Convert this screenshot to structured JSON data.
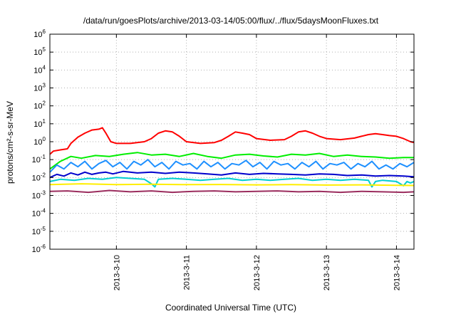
{
  "chart_data": {
    "type": "line",
    "title": "/data/run/goesPlots/archive/2013-03-14/05:00/flux/../flux/5daysMoonFluxes.txt",
    "xlabel": "Coordinated Universal Time (UTC)",
    "ylabel": "protons/cm²-s-sr-MeV",
    "yscale": "log",
    "ylim": [
      1e-06,
      1000000.0
    ],
    "xlim_days": [
      9.05,
      14.25
    ],
    "y_ticks": [
      {
        "base": "10",
        "exp": "-6"
      },
      {
        "base": "10",
        "exp": "-5"
      },
      {
        "base": "10",
        "exp": "-4"
      },
      {
        "base": "10",
        "exp": "-3"
      },
      {
        "base": "10",
        "exp": "-2"
      },
      {
        "base": "10",
        "exp": "-1"
      },
      {
        "base": "10",
        "exp": "0"
      },
      {
        "base": "10",
        "exp": "1"
      },
      {
        "base": "10",
        "exp": "2"
      },
      {
        "base": "10",
        "exp": "3"
      },
      {
        "base": "10",
        "exp": "4"
      },
      {
        "base": "10",
        "exp": "5"
      },
      {
        "base": "10",
        "exp": "6"
      }
    ],
    "x_ticks": [
      "2013-3-10",
      "2013-3-11",
      "2013-3-12",
      "2013-3-13",
      "2013-3-14"
    ],
    "grid": true,
    "series": [
      {
        "color": "#ff0000",
        "x": [
          9.05,
          9.1,
          9.2,
          9.3,
          9.35,
          9.45,
          9.55,
          9.65,
          9.75,
          9.8,
          9.85,
          9.92,
          10.0,
          10.2,
          10.4,
          10.5,
          10.6,
          10.7,
          10.8,
          10.9,
          11.0,
          11.2,
          11.4,
          11.5,
          11.6,
          11.7,
          11.8,
          11.9,
          12.0,
          12.2,
          12.4,
          12.5,
          12.6,
          12.7,
          12.8,
          12.9,
          13.0,
          13.2,
          13.4,
          13.5,
          13.6,
          13.7,
          13.8,
          13.9,
          14.0,
          14.1,
          14.2,
          14.25
        ],
        "y": [
          0.2,
          0.3,
          0.35,
          0.4,
          0.8,
          1.8,
          3.0,
          4.5,
          5.0,
          6.0,
          3.0,
          1.0,
          0.8,
          0.8,
          1.0,
          1.5,
          3.0,
          4.0,
          3.5,
          2.0,
          1.0,
          0.8,
          0.9,
          1.2,
          2.0,
          3.5,
          3.0,
          2.5,
          1.5,
          1.2,
          1.3,
          2.0,
          3.5,
          4.0,
          3.0,
          2.0,
          1.5,
          1.3,
          1.6,
          2.0,
          2.5,
          2.8,
          2.5,
          2.2,
          2.0,
          1.5,
          1.0,
          0.9
        ]
      },
      {
        "color": "#00ee00",
        "x": [
          9.05,
          9.2,
          9.35,
          9.5,
          9.7,
          9.9,
          10.1,
          10.3,
          10.5,
          10.7,
          10.9,
          11.1,
          11.3,
          11.5,
          11.7,
          11.9,
          12.1,
          12.3,
          12.5,
          12.7,
          12.9,
          13.1,
          13.3,
          13.5,
          13.7,
          13.9,
          14.1,
          14.25
        ],
        "y": [
          0.03,
          0.08,
          0.15,
          0.12,
          0.17,
          0.15,
          0.2,
          0.25,
          0.18,
          0.2,
          0.15,
          0.22,
          0.15,
          0.12,
          0.18,
          0.2,
          0.16,
          0.14,
          0.2,
          0.18,
          0.22,
          0.15,
          0.18,
          0.15,
          0.14,
          0.12,
          0.13,
          0.13
        ]
      },
      {
        "color": "#1e90ff",
        "x": [
          9.05,
          9.15,
          9.25,
          9.35,
          9.45,
          9.55,
          9.65,
          9.75,
          9.85,
          9.95,
          10.05,
          10.15,
          10.25,
          10.35,
          10.45,
          10.55,
          10.65,
          10.75,
          10.85,
          10.95,
          11.05,
          11.15,
          11.25,
          11.35,
          11.45,
          11.55,
          11.65,
          11.75,
          11.85,
          11.95,
          12.05,
          12.15,
          12.25,
          12.35,
          12.45,
          12.55,
          12.65,
          12.75,
          12.85,
          12.95,
          13.05,
          13.15,
          13.25,
          13.35,
          13.45,
          13.55,
          13.65,
          13.75,
          13.85,
          13.95,
          14.05,
          14.15,
          14.25
        ],
        "y": [
          0.02,
          0.05,
          0.03,
          0.07,
          0.04,
          0.08,
          0.03,
          0.06,
          0.09,
          0.04,
          0.07,
          0.03,
          0.08,
          0.05,
          0.1,
          0.04,
          0.07,
          0.03,
          0.08,
          0.05,
          0.06,
          0.03,
          0.08,
          0.04,
          0.07,
          0.03,
          0.06,
          0.05,
          0.09,
          0.04,
          0.07,
          0.03,
          0.08,
          0.05,
          0.06,
          0.03,
          0.07,
          0.04,
          0.08,
          0.03,
          0.06,
          0.05,
          0.07,
          0.03,
          0.06,
          0.04,
          0.08,
          0.03,
          0.05,
          0.03,
          0.06,
          0.04,
          0.07
        ]
      },
      {
        "color": "#0000cd",
        "x": [
          9.05,
          9.15,
          9.25,
          9.35,
          9.45,
          9.55,
          9.65,
          9.75,
          9.85,
          9.95,
          10.1,
          10.3,
          10.5,
          10.7,
          10.9,
          11.1,
          11.3,
          11.5,
          11.7,
          11.9,
          12.1,
          12.3,
          12.5,
          12.7,
          12.9,
          13.1,
          13.3,
          13.5,
          13.7,
          13.9,
          14.1,
          14.25
        ],
        "y": [
          0.01,
          0.015,
          0.012,
          0.018,
          0.014,
          0.02,
          0.015,
          0.018,
          0.02,
          0.016,
          0.022,
          0.018,
          0.02,
          0.017,
          0.02,
          0.018,
          0.016,
          0.014,
          0.018,
          0.015,
          0.017,
          0.016,
          0.015,
          0.014,
          0.016,
          0.015,
          0.013,
          0.014,
          0.012,
          0.013,
          0.012,
          0.011
        ]
      },
      {
        "color": "#00ced1",
        "x": [
          9.05,
          9.2,
          9.4,
          9.6,
          9.8,
          10.0,
          10.2,
          10.4,
          10.5,
          10.55,
          10.6,
          10.8,
          11.0,
          11.2,
          11.4,
          11.6,
          11.8,
          12.0,
          12.2,
          12.4,
          12.6,
          12.8,
          13.0,
          13.2,
          13.4,
          13.6,
          13.65,
          13.7,
          13.8,
          14.0,
          14.1,
          14.15,
          14.2,
          14.25
        ],
        "y": [
          0.006,
          0.008,
          0.007,
          0.009,
          0.008,
          0.01,
          0.009,
          0.008,
          0.0045,
          0.003,
          0.008,
          0.009,
          0.008,
          0.007,
          0.008,
          0.009,
          0.007,
          0.008,
          0.007,
          0.008,
          0.009,
          0.007,
          0.008,
          0.007,
          0.008,
          0.007,
          0.003,
          0.006,
          0.007,
          0.006,
          0.0035,
          0.006,
          0.005,
          0.006
        ]
      },
      {
        "color": "#ffee00",
        "x": [
          9.05,
          9.5,
          10.0,
          10.5,
          11.0,
          11.5,
          12.0,
          12.5,
          13.0,
          13.5,
          14.0,
          14.25
        ],
        "y": [
          0.004,
          0.0045,
          0.004,
          0.0042,
          0.004,
          0.0041,
          0.0039,
          0.004,
          0.0038,
          0.0039,
          0.0037,
          0.0036
        ]
      },
      {
        "color": "#9b2d5e",
        "x": [
          9.05,
          9.3,
          9.6,
          9.9,
          10.2,
          10.5,
          10.8,
          11.1,
          11.4,
          11.7,
          12.0,
          12.3,
          12.6,
          12.9,
          13.2,
          13.5,
          13.8,
          14.1,
          14.25
        ],
        "y": [
          0.0017,
          0.0018,
          0.0015,
          0.0019,
          0.0016,
          0.0018,
          0.0015,
          0.0017,
          0.0018,
          0.0016,
          0.0017,
          0.0018,
          0.0016,
          0.0017,
          0.0015,
          0.0017,
          0.0016,
          0.0015,
          0.0016
        ]
      }
    ]
  }
}
